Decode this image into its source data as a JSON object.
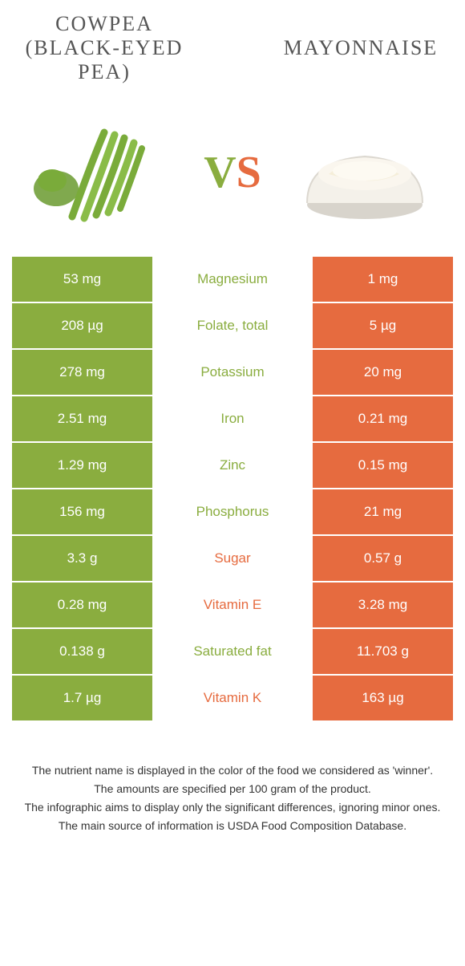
{
  "colors": {
    "left_bg": "#8aad3f",
    "right_bg": "#e66b3f",
    "left_text": "#8aad3f",
    "right_text": "#e66b3f"
  },
  "left_food": {
    "title": "COWPEA (BLACK-EYED PEA)"
  },
  "right_food": {
    "title": "MAYONNAISE"
  },
  "vs": {
    "v": "V",
    "s": "S"
  },
  "rows": [
    {
      "left": "53 mg",
      "mid": "Magnesium",
      "winner": "left",
      "right": "1 mg"
    },
    {
      "left": "208 µg",
      "mid": "Folate, total",
      "winner": "left",
      "right": "5 µg"
    },
    {
      "left": "278 mg",
      "mid": "Potassium",
      "winner": "left",
      "right": "20 mg"
    },
    {
      "left": "2.51 mg",
      "mid": "Iron",
      "winner": "left",
      "right": "0.21 mg"
    },
    {
      "left": "1.29 mg",
      "mid": "Zinc",
      "winner": "left",
      "right": "0.15 mg"
    },
    {
      "left": "156 mg",
      "mid": "Phosphorus",
      "winner": "left",
      "right": "21 mg"
    },
    {
      "left": "3.3 g",
      "mid": "Sugar",
      "winner": "right",
      "right": "0.57 g"
    },
    {
      "left": "0.28 mg",
      "mid": "Vitamin E",
      "winner": "right",
      "right": "3.28 mg"
    },
    {
      "left": "0.138 g",
      "mid": "Saturated fat",
      "winner": "left",
      "right": "11.703 g"
    },
    {
      "left": "1.7 µg",
      "mid": "Vitamin K",
      "winner": "right",
      "right": "163 µg"
    }
  ],
  "footer": {
    "l1": "The nutrient name is displayed in the color of the food we considered as 'winner'.",
    "l2": "The amounts are specified per 100 gram of the product.",
    "l3": "The infographic aims to display only the significant differences, ignoring minor ones.",
    "l4": "The main source of information is USDA Food Composition Database."
  }
}
